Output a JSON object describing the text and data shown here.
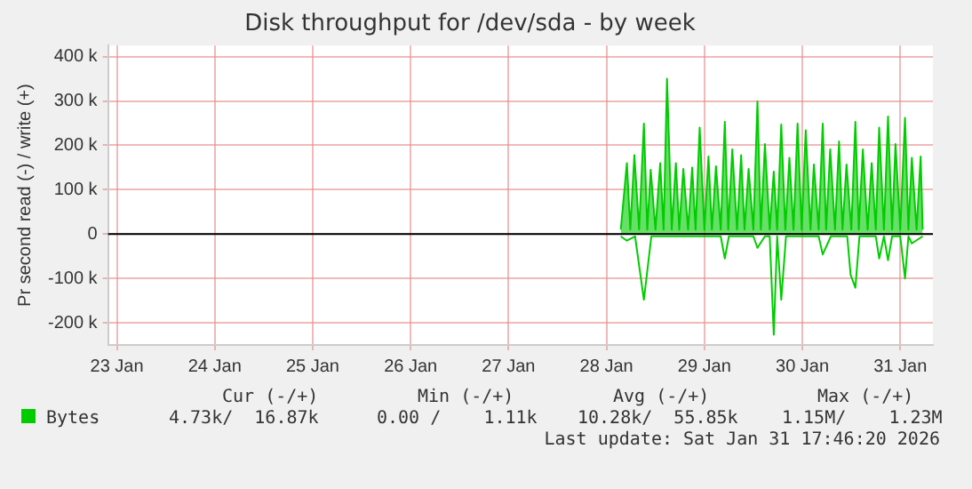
{
  "chart_data": {
    "type": "area",
    "title": "Disk throughput for /dev/sda - by week",
    "ylabel": "Pr second read (-) / write (+)",
    "xlim": [
      "2026-01-22T21:50",
      "2026-01-31T08:00"
    ],
    "xticks": [
      {
        "value": "2026-01-23",
        "label": "23 Jan"
      },
      {
        "value": "2026-01-24",
        "label": "24 Jan"
      },
      {
        "value": "2026-01-25",
        "label": "25 Jan"
      },
      {
        "value": "2026-01-26",
        "label": "26 Jan"
      },
      {
        "value": "2026-01-27",
        "label": "27 Jan"
      },
      {
        "value": "2026-01-28",
        "label": "28 Jan"
      },
      {
        "value": "2026-01-29",
        "label": "29 Jan"
      },
      {
        "value": "2026-01-30",
        "label": "30 Jan"
      },
      {
        "value": "2026-01-31",
        "label": "31 Jan"
      }
    ],
    "ylim": [
      -250000,
      425000
    ],
    "yticks": [
      {
        "value": -200000,
        "label": "-200 k"
      },
      {
        "value": -100000,
        "label": "-100 k"
      },
      0,
      {
        "value": 100000,
        "label": "100 k"
      },
      {
        "value": 200000,
        "label": "200 k"
      },
      {
        "value": 300000,
        "label": "300 k"
      },
      {
        "value": 400000,
        "label": "400 k"
      }
    ],
    "grid": true,
    "legend": "bottom left",
    "marker": "none",
    "ref_lines": [
      {
        "axis": "y",
        "value": 0,
        "color": "#000000"
      }
    ],
    "series": [
      {
        "name": "Bytes",
        "color": "#00cc00",
        "x": [
          "2026-01-28T03:30",
          "2026-01-28T05:00",
          "2026-01-28T05:50",
          "2026-01-28T06:50",
          "2026-01-28T08:00",
          "2026-01-28T09:10",
          "2026-01-28T10:00",
          "2026-01-28T10:50",
          "2026-01-28T12:00",
          "2026-01-28T13:10",
          "2026-01-28T14:00",
          "2026-01-28T14:50",
          "2026-01-28T16:00",
          "2026-01-28T17:00",
          "2026-01-28T17:50",
          "2026-01-28T18:50",
          "2026-01-28T20:00",
          "2026-01-28T21:00",
          "2026-01-28T21:50",
          "2026-01-28T22:50",
          "2026-01-29T00:00",
          "2026-01-29T01:00",
          "2026-01-29T01:50",
          "2026-01-29T02:50",
          "2026-01-29T04:00",
          "2026-01-29T05:00",
          "2026-01-29T05:50",
          "2026-01-29T06:50",
          "2026-01-29T08:00",
          "2026-01-29T09:00",
          "2026-01-29T09:50",
          "2026-01-29T10:50",
          "2026-01-29T12:00",
          "2026-01-29T13:00",
          "2026-01-29T13:50",
          "2026-01-29T14:50",
          "2026-01-29T16:00",
          "2026-01-29T17:00",
          "2026-01-29T17:50",
          "2026-01-29T18:50",
          "2026-01-29T19:50",
          "2026-01-29T20:50",
          "2026-01-29T21:50",
          "2026-01-29T22:50",
          "2026-01-29T23:50",
          "2026-01-30T00:50",
          "2026-01-30T02:00",
          "2026-01-30T02:50",
          "2026-01-30T04:00",
          "2026-01-30T05:00",
          "2026-01-30T05:50",
          "2026-01-30T06:50",
          "2026-01-30T08:00",
          "2026-01-30T09:00",
          "2026-01-30T09:50",
          "2026-01-30T10:50",
          "2026-01-30T12:00",
          "2026-01-30T13:00",
          "2026-01-30T13:50",
          "2026-01-30T14:50",
          "2026-01-30T16:00",
          "2026-01-30T17:00",
          "2026-01-30T18:00",
          "2026-01-30T18:50",
          "2026-01-30T20:00",
          "2026-01-30T21:00",
          "2026-01-30T22:00",
          "2026-01-30T22:50",
          "2026-01-31T00:00",
          "2026-01-31T01:10",
          "2026-01-31T02:00",
          "2026-01-31T02:50",
          "2026-01-31T04:00",
          "2026-01-31T05:00",
          "2026-01-31T05:30"
        ],
        "values": [
          10000,
          160000,
          10000,
          178000,
          10000,
          249000,
          10000,
          145000,
          10000,
          160000,
          10000,
          350000,
          10000,
          160000,
          10000,
          147000,
          10000,
          150000,
          10000,
          240000,
          10000,
          175000,
          10000,
          153000,
          10000,
          253000,
          10000,
          191000,
          10000,
          178000,
          10000,
          147000,
          10000,
          299000,
          10000,
          203000,
          10000,
          141000,
          10000,
          247000,
          10000,
          172000,
          10000,
          249000,
          10000,
          234000,
          10000,
          157000,
          10000,
          249000,
          10000,
          191000,
          10000,
          209000,
          10000,
          157000,
          10000,
          253000,
          10000,
          191000,
          10000,
          160000,
          10000,
          240000,
          10000,
          265000,
          10000,
          203000,
          10000,
          262000,
          10000,
          172000,
          10000,
          175000,
          10000
        ]
      },
      {
        "type": "line",
        "color": "#00cc00",
        "x": [
          "2026-01-28T03:30",
          "2026-01-28T05:00",
          "2026-01-28T07:00",
          "2026-01-28T09:10",
          "2026-01-28T11:00",
          "2026-01-29T04:00",
          "2026-01-29T05:00",
          "2026-01-29T06:00",
          "2026-01-29T12:00",
          "2026-01-29T13:00",
          "2026-01-29T14:50",
          "2026-01-29T16:00",
          "2026-01-29T17:00",
          "2026-01-29T17:50",
          "2026-01-29T18:50",
          "2026-01-29T20:00",
          "2026-01-30T04:00",
          "2026-01-30T05:00",
          "2026-01-30T07:00",
          "2026-01-30T11:00",
          "2026-01-30T11:50",
          "2026-01-30T13:00",
          "2026-01-30T14:00",
          "2026-01-30T18:00",
          "2026-01-30T18:50",
          "2026-01-30T20:00",
          "2026-01-30T21:00",
          "2026-01-30T22:00",
          "2026-01-31T00:00",
          "2026-01-31T01:10",
          "2026-01-31T02:00",
          "2026-01-31T02:50",
          "2026-01-31T05:30"
        ],
        "values": [
          -5000,
          -15000,
          -5000,
          -148000,
          -5000,
          -5000,
          -55000,
          -5000,
          -5000,
          -31000,
          -5000,
          -5000,
          -227000,
          -5000,
          -148000,
          -5000,
          -5000,
          -46000,
          -5000,
          -5000,
          -92000,
          -121000,
          -5000,
          -5000,
          -55000,
          -5000,
          -59000,
          -5000,
          -5000,
          -100000,
          -5000,
          -21000,
          -5000
        ]
      }
    ],
    "annotations": [
      "Cur (-/+)",
      "Min (-/+)",
      "Avg (-/+)",
      "Max (-/+)",
      "4.73k/  16.87k",
      "0.00 /    1.11k",
      "10.28k/  55.85k",
      "1.15M/    1.23M",
      "Last update: Sat Jan 31 17:46:20 2026"
    ]
  }
}
